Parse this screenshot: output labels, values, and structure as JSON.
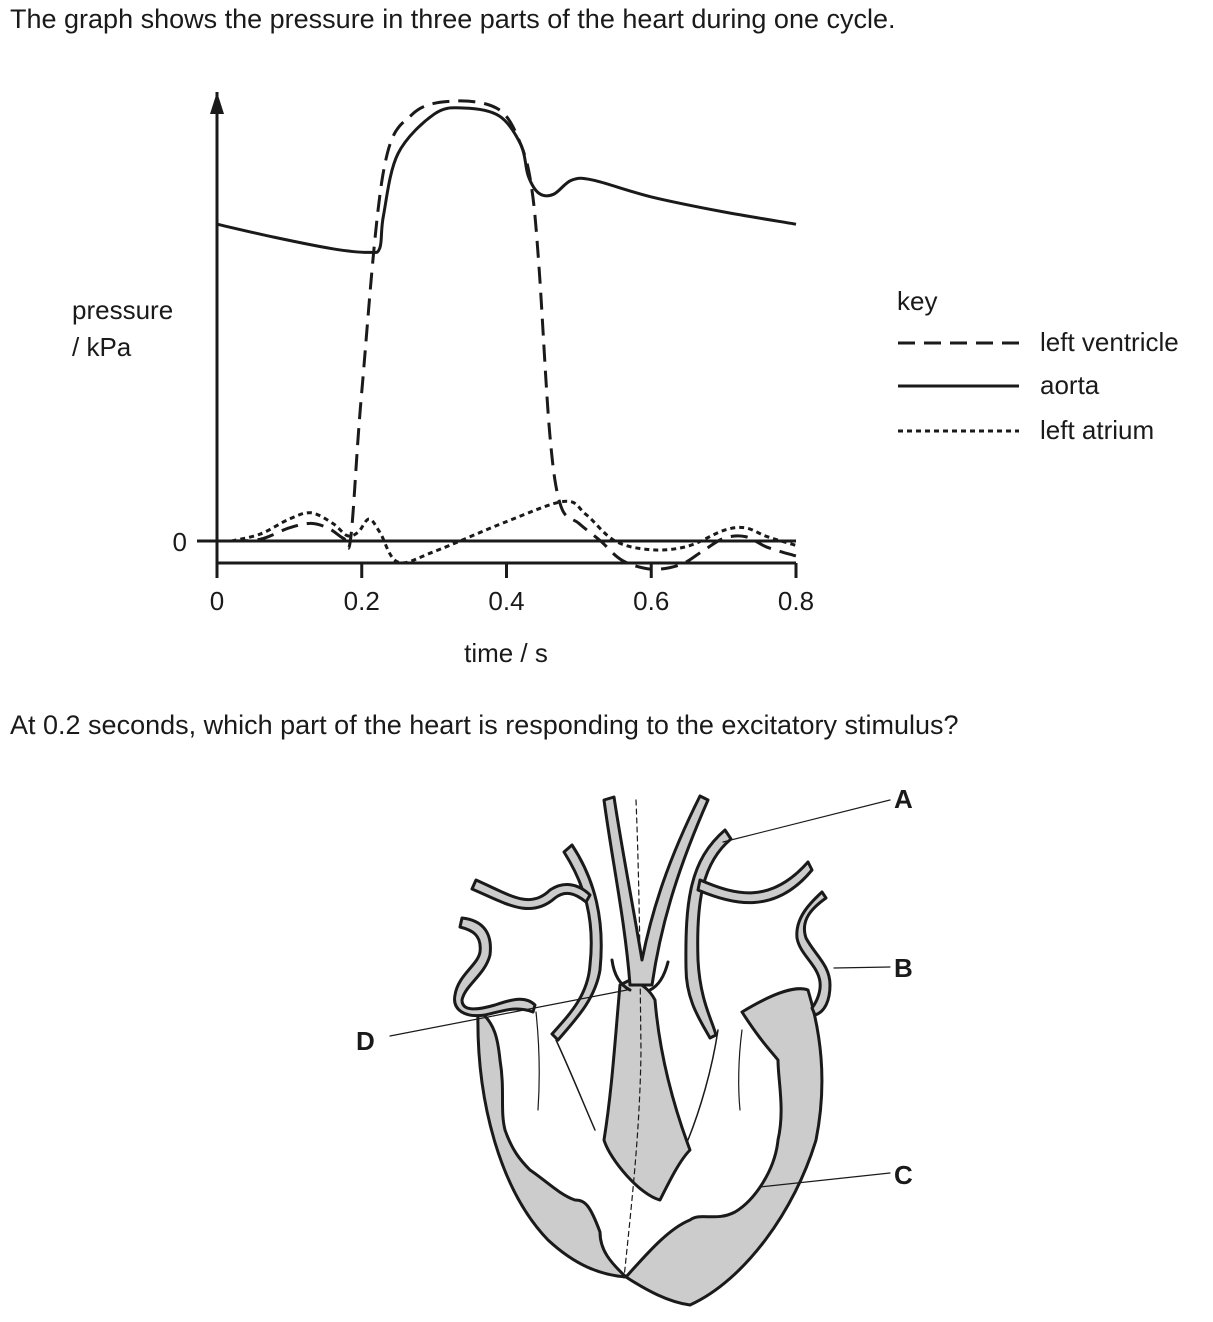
{
  "intro_text": "The graph shows the pressure in three parts of the heart during one cycle.",
  "question_text": "At 0.2 seconds, which part of the heart is responding to the excitatory stimulus?",
  "chart_data": {
    "type": "line",
    "ylabel_line1": "pressure",
    "ylabel_line2": "/ kPa",
    "xlabel": "time / s",
    "x_ticks": [
      "0",
      "0.2",
      "0.4",
      "0.6",
      "0.8"
    ],
    "y_ticks": [
      "0"
    ],
    "xlim": [
      0,
      0.8
    ],
    "legend_title": "key",
    "legend_position": "right",
    "series": [
      {
        "name": "left ventricle",
        "style": "dashed",
        "points": [
          [
            0.02,
            0
          ],
          [
            0.06,
            0.2
          ],
          [
            0.1,
            1.5
          ],
          [
            0.13,
            2.0
          ],
          [
            0.155,
            1.4
          ],
          [
            0.175,
            0.3
          ],
          [
            0.185,
            0.5
          ],
          [
            0.2,
            17
          ],
          [
            0.23,
            42
          ],
          [
            0.27,
            48.5
          ],
          [
            0.33,
            50
          ],
          [
            0.39,
            49
          ],
          [
            0.42,
            45
          ],
          [
            0.435,
            40
          ],
          [
            0.445,
            31
          ],
          [
            0.46,
            12
          ],
          [
            0.475,
            4
          ],
          [
            0.5,
            2
          ],
          [
            0.53,
            0
          ],
          [
            0.56,
            -2.2
          ],
          [
            0.6,
            -3.2
          ],
          [
            0.64,
            -2.7
          ],
          [
            0.67,
            -1.2
          ],
          [
            0.7,
            0.3
          ],
          [
            0.73,
            0.5
          ],
          [
            0.76,
            -0.7
          ],
          [
            0.8,
            -1.7
          ]
        ]
      },
      {
        "name": "aorta",
        "style": "solid",
        "points": [
          [
            0,
            36
          ],
          [
            0.08,
            34.5
          ],
          [
            0.16,
            33.2
          ],
          [
            0.21,
            32.8
          ],
          [
            0.225,
            33.3
          ],
          [
            0.23,
            37
          ],
          [
            0.25,
            44
          ],
          [
            0.3,
            48.5
          ],
          [
            0.34,
            49.2
          ],
          [
            0.39,
            48.3
          ],
          [
            0.42,
            45
          ],
          [
            0.43,
            41.5
          ],
          [
            0.445,
            39.5
          ],
          [
            0.465,
            39.4
          ],
          [
            0.49,
            41
          ],
          [
            0.52,
            41
          ],
          [
            0.6,
            39.1
          ],
          [
            0.7,
            37.4
          ],
          [
            0.8,
            36
          ]
        ]
      },
      {
        "name": "left atrium",
        "style": "dotted",
        "points": [
          [
            0.02,
            0
          ],
          [
            0.06,
            0.8
          ],
          [
            0.1,
            2.5
          ],
          [
            0.13,
            3.2
          ],
          [
            0.16,
            2.0
          ],
          [
            0.18,
            0.6
          ],
          [
            0.195,
            1.0
          ],
          [
            0.21,
            2.5
          ],
          [
            0.225,
            1.0
          ],
          [
            0.25,
            -2.4
          ],
          [
            0.3,
            -1.2
          ],
          [
            0.4,
            2.2
          ],
          [
            0.48,
            4.5
          ],
          [
            0.51,
            3.0
          ],
          [
            0.55,
            0
          ],
          [
            0.6,
            -1.0
          ],
          [
            0.65,
            -0.6
          ],
          [
            0.7,
            1.2
          ],
          [
            0.73,
            1.5
          ],
          [
            0.76,
            0.5
          ],
          [
            0.8,
            -0.5
          ]
        ]
      }
    ]
  },
  "diagram": {
    "labels": {
      "A": "A",
      "B": "B",
      "C": "C",
      "D": "D"
    }
  }
}
